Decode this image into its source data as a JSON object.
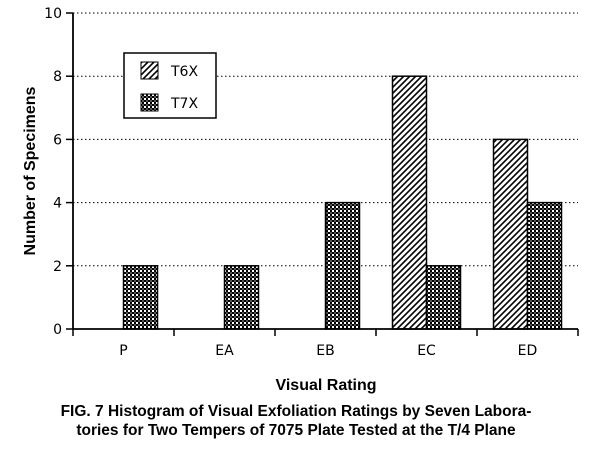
{
  "chart_data": {
    "type": "bar",
    "xlabel": "Visual Rating",
    "ylabel": "Number of Specimens",
    "categories": [
      "P",
      "EA",
      "EB",
      "EC",
      "ED"
    ],
    "ylim": [
      0,
      10
    ],
    "yticks": [
      "0",
      "2",
      "4",
      "6",
      "8",
      "10"
    ],
    "grid": "horizontal dotted",
    "legend_position": "top-left",
    "series": [
      {
        "name": "T6X",
        "pattern": "diagonal-hatch",
        "values": [
          0,
          0,
          0,
          8,
          6
        ]
      },
      {
        "name": "T7X",
        "pattern": "checkered",
        "values": [
          2,
          2,
          4,
          2,
          4
        ]
      }
    ]
  },
  "caption": {
    "line1": "FIG. 7  Histogram of Visual Exfoliation Ratings by Seven Labora-",
    "line2": "tories for Two Tempers of 7075 Plate Tested at the T/4 Plane"
  },
  "colors": {
    "ink": "#000000",
    "background": "#ffffff"
  }
}
